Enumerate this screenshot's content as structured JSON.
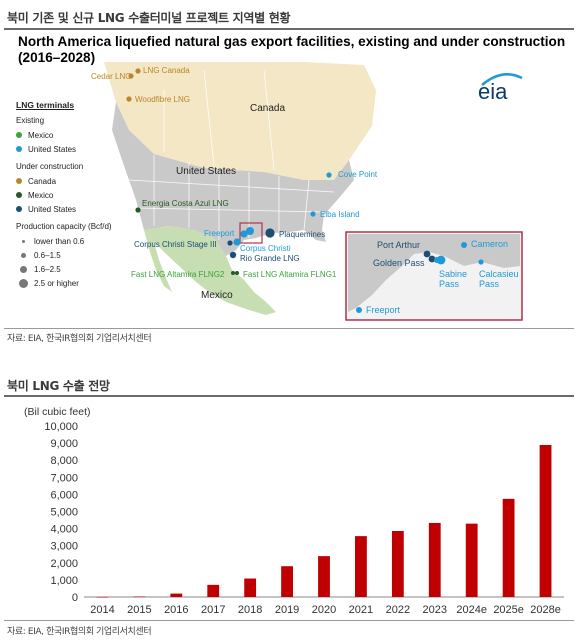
{
  "section1": {
    "title": "북미 기존 및 신규 LNG 수출터미널 프로젝트 지역별 현황"
  },
  "map": {
    "title": "North America liquefied natural gas export facilities, existing and under construction (2016–2028)",
    "logo": "eia",
    "country_labels": {
      "canada": "Canada",
      "united_states": "United States",
      "mexico": "Mexico"
    },
    "legend": {
      "heading": "LNG terminals",
      "existing_label": "Existing",
      "existing": [
        {
          "label": "Mexico",
          "color": "#3aa33a"
        },
        {
          "label": "United States",
          "color": "#1f9ad6"
        }
      ],
      "under_construction_label": "Under construction",
      "under_construction": [
        {
          "label": "Canada",
          "color": "#b8862b"
        },
        {
          "label": "Mexico",
          "color": "#255a25"
        },
        {
          "label": "United States",
          "color": "#1d4e73"
        }
      ],
      "capacity_label": "Production capacity (Bcf/d)",
      "capacity": [
        "lower than 0.6",
        "0.6–1.5",
        "1.6–2.5",
        "2.5 or higher"
      ]
    },
    "terminals": {
      "cedar": "Cedar LNG",
      "lng_canada": "LNG Canada",
      "woodfibre": "Woodfibre LNG",
      "cove_point": "Cove Point",
      "elba": "Elba Island",
      "costa_azul": "Energia Costa Azul LNG",
      "freeport": "Freeport",
      "plaquemines": "Plaquemines",
      "cc_stage3": "Corpus Christi Stage III",
      "corpus": "Corpus Christi",
      "rio_grande": "Rio Grande LNG",
      "altamira2": "Fast LNG Altamira FLNG2",
      "altamira1": "Fast LNG Altamira FLNG1"
    },
    "inset": {
      "port_arthur": "Port Arthur",
      "cameron": "Cameron",
      "golden_pass": "Golden Pass",
      "sabine": "Sabine Pass",
      "calcasieu": "Calcasieu Pass",
      "freeport": "Freeport"
    },
    "colors": {
      "us": "#c9c9c9",
      "canada": "#f3e7c6",
      "mexico": "#c7ddb2",
      "water": "#ffffff",
      "border": "#ffffff",
      "inset_frame": "#b0334c"
    }
  },
  "source1": "자료: EIA, 한국IR협의회 기업리서치센터",
  "section2": {
    "title": "북미 LNG 수출 전망"
  },
  "chart_data": {
    "type": "bar",
    "title": "",
    "unit_label": "(Bil cubic feet)",
    "xlabel": "",
    "ylabel": "",
    "categories": [
      "2014",
      "2015",
      "2016",
      "2017",
      "2018",
      "2019",
      "2020",
      "2021",
      "2022",
      "2023",
      "2024e",
      "2025e",
      "2028e"
    ],
    "values": [
      5,
      30,
      200,
      710,
      1080,
      1800,
      2390,
      3560,
      3860,
      4330,
      4290,
      5740,
      8890
    ],
    "ylim": [
      0,
      10000
    ],
    "yticks": [
      0,
      1000,
      2000,
      3000,
      4000,
      5000,
      6000,
      7000,
      8000,
      9000,
      10000
    ],
    "ytick_labels": [
      "0",
      "1,000",
      "2,000",
      "3,000",
      "4,000",
      "5,000",
      "6,000",
      "7,000",
      "8,000",
      "9,000",
      "10,000"
    ],
    "bar_color": "#c00000",
    "grid": false,
    "legend": "none"
  },
  "source2": "자료: EIA, 한국IR협의회 기업리서치센터"
}
